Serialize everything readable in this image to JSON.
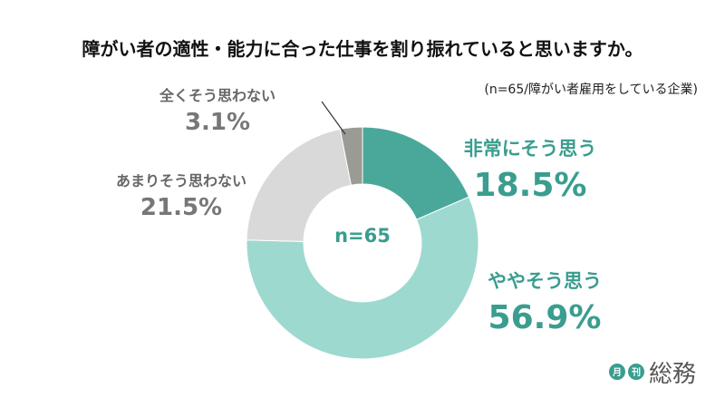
{
  "chart_data": {
    "type": "pie",
    "title": "障がい者の適性・能力に合った仕事を割り振れていると思いますか。",
    "subtitle": "(n=65/障がい者雇用をしている企業)",
    "center_label": "n=65",
    "slices": [
      {
        "label": "非常にそう思う",
        "value": 18.5,
        "value_label": "18.5%",
        "color": "#4aa89a"
      },
      {
        "label": "ややそう思う",
        "value": 56.9,
        "value_label": "56.9%",
        "color": "#9dd9cf"
      },
      {
        "label": "あまりそう思わない",
        "value": 21.5,
        "value_label": "21.5%",
        "color": "#d9d9d9"
      },
      {
        "label": "全くそう思わない",
        "value": 3.1,
        "value_label": "3.1%",
        "color": "#9b9b96"
      }
    ]
  },
  "logo": {
    "small_1": "月",
    "small_2": "刊",
    "main": "総務"
  }
}
